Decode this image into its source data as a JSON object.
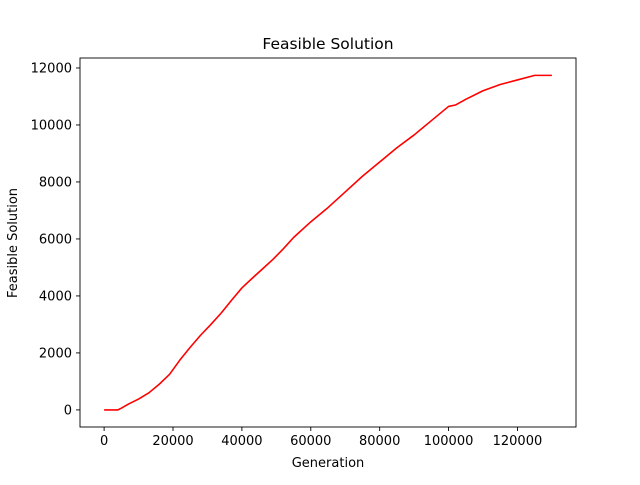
{
  "chart_data": {
    "type": "line",
    "title": "Feasible Solution",
    "xlabel": "Generation",
    "ylabel": "Feasible Solution",
    "xlim": [
      -7000,
      137000
    ],
    "ylim": [
      -600,
      12350
    ],
    "xticks": [
      0,
      20000,
      40000,
      60000,
      80000,
      100000,
      120000
    ],
    "yticks": [
      0,
      2000,
      4000,
      6000,
      8000,
      10000,
      12000
    ],
    "grid": false,
    "legend": "none",
    "series": [
      {
        "color": "#ff0000",
        "x": [
          0,
          4000,
          5000,
          7000,
          10000,
          13000,
          16000,
          19000,
          22000,
          25000,
          28000,
          31000,
          34000,
          37000,
          40000,
          43000,
          46000,
          49000,
          52000,
          55000,
          60000,
          65000,
          70000,
          75000,
          80000,
          85000,
          90000,
          95000,
          100000,
          102000,
          105000,
          110000,
          115000,
          120000,
          125000,
          130000
        ],
        "y": [
          0,
          0,
          60,
          200,
          380,
          600,
          900,
          1250,
          1750,
          2200,
          2620,
          3000,
          3400,
          3850,
          4280,
          4620,
          4950,
          5280,
          5650,
          6050,
          6600,
          7100,
          7650,
          8200,
          8700,
          9200,
          9650,
          10150,
          10650,
          10700,
          10900,
          11200,
          11420,
          11580,
          11740,
          11740
        ]
      }
    ]
  }
}
